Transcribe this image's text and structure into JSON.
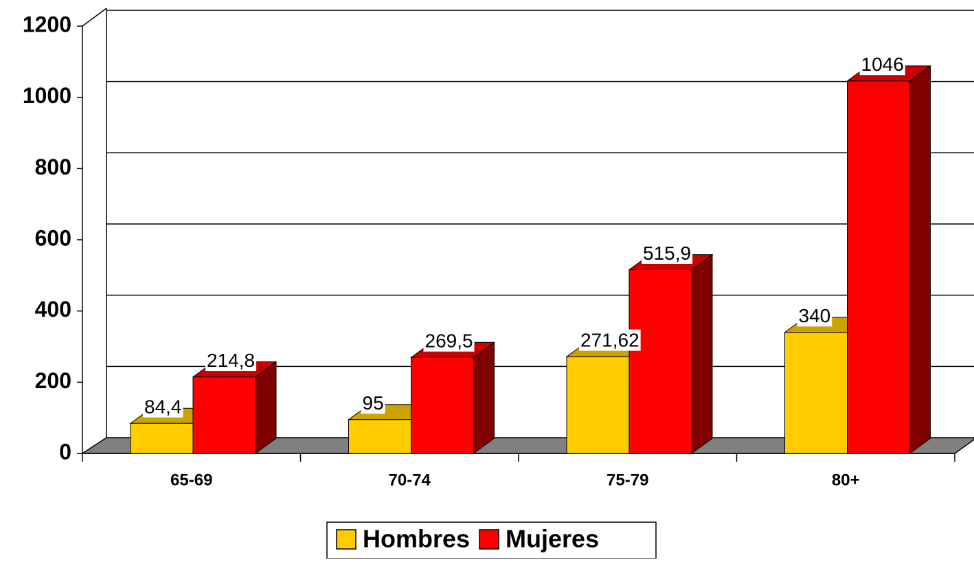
{
  "chart_data": {
    "type": "bar3d",
    "categories": [
      "65-69",
      "70-74",
      "75-79",
      "80+"
    ],
    "series": [
      {
        "name": "Hombres",
        "color": "#FFCC00",
        "values": [
          84.4,
          95,
          271.62,
          340
        ],
        "value_labels": [
          "84,4",
          "95",
          "271,62",
          "340"
        ]
      },
      {
        "name": "Mujeres",
        "color": "#FF0000",
        "values": [
          214.8,
          269.5,
          515.9,
          1046
        ],
        "value_labels": [
          "214,8",
          "269,5",
          "515,9",
          "1046"
        ]
      }
    ],
    "ylim": [
      0,
      1200
    ],
    "yticks": [
      0,
      200,
      400,
      600,
      800,
      1000,
      1200
    ],
    "grid": true,
    "legend": "bottom"
  }
}
